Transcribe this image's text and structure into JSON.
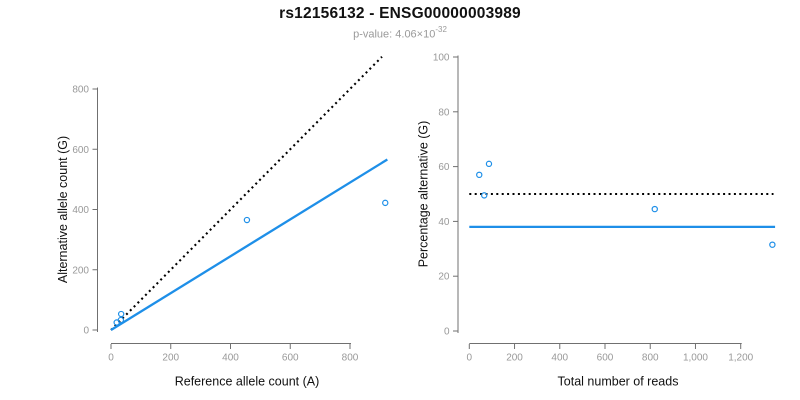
{
  "header": {
    "title": "rs12156132 - ENSG00000003989",
    "pvalue_text": "p-value: 4.06×10",
    "pvalue_exponent": "-32"
  },
  "colors": {
    "accent_blue": "#1E8FE8",
    "reference_black": "#000000",
    "axis_line": "#707070",
    "tick_text": "#999999",
    "axis_title_text": "#111111",
    "title_text": "#111111",
    "subtitle_text": "#9a9a9a",
    "background": "#ffffff"
  },
  "chart_data": [
    {
      "type": "scatter",
      "name": "allele-count-scatter",
      "xlabel": "Reference allele count (A)",
      "ylabel": "Alternative allele count (G)",
      "xlim": [
        0,
        935
      ],
      "ylim": [
        0,
        908
      ],
      "grid": false,
      "legend": "none",
      "xticks": {
        "values": [
          0,
          200,
          400,
          600,
          800
        ],
        "labels": [
          "0",
          "200",
          "400",
          "600",
          "800"
        ]
      },
      "yticks": {
        "values": [
          0,
          200,
          400,
          600,
          800
        ],
        "labels": [
          "0",
          "200",
          "400",
          "600",
          "800"
        ]
      },
      "points": [
        [
          19,
          25
        ],
        [
          33,
          33
        ],
        [
          34,
          53
        ],
        [
          455,
          365
        ],
        [
          918,
          422
        ]
      ],
      "lines": [
        {
          "name": "identity-line",
          "style": "dotted",
          "color": "#000000",
          "x1": 0,
          "y1": 0,
          "x2": 907,
          "y2": 907
        },
        {
          "name": "fit-line",
          "style": "solid",
          "color": "#1E8FE8",
          "x1": 0,
          "y1": 0,
          "x2": 925,
          "y2": 566
        }
      ]
    },
    {
      "type": "scatter",
      "name": "percentage-scatter",
      "xlabel": "Total number of reads",
      "ylabel": "Percentage alternative (G)",
      "xlim": [
        0,
        1360
      ],
      "ylim": [
        0,
        100
      ],
      "grid": false,
      "legend": "none",
      "xticks": {
        "values": [
          0,
          200,
          400,
          600,
          800,
          1000,
          1200
        ],
        "labels": [
          "0",
          "200",
          "400",
          "600",
          "800",
          "1,000",
          "1,200"
        ]
      },
      "yticks": {
        "values": [
          0,
          20,
          40,
          60,
          80,
          100
        ],
        "labels": [
          "0",
          "20",
          "40",
          "60",
          "80",
          "100"
        ]
      },
      "points": [
        [
          44,
          57
        ],
        [
          66,
          49.5
        ],
        [
          87,
          61
        ],
        [
          820,
          44.5
        ],
        [
          1340,
          31.5
        ]
      ],
      "lines": [
        {
          "name": "fifty-percent-line",
          "style": "dotted",
          "color": "#000000",
          "x1": 0,
          "y1": 50,
          "x2": 1345,
          "y2": 50
        },
        {
          "name": "mean-percentage-line",
          "style": "solid",
          "color": "#1E8FE8",
          "x1": 0,
          "y1": 38,
          "x2": 1352,
          "y2": 38
        }
      ]
    }
  ]
}
